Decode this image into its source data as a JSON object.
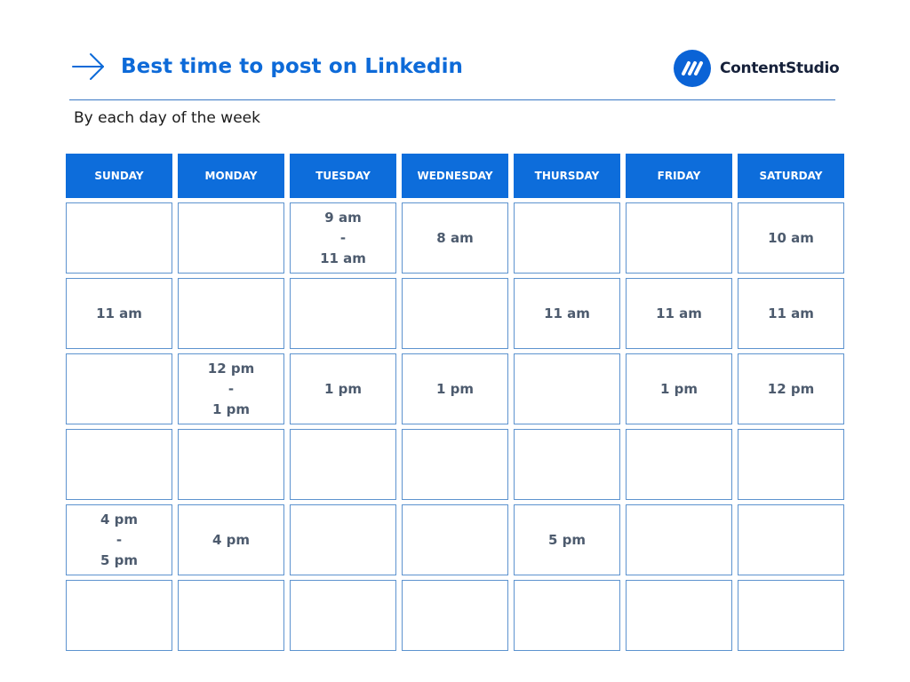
{
  "header": {
    "title": "Best time to post on Linkedin",
    "brand_name": "ContentStudio",
    "subtitle": "By each day of the week"
  },
  "icons": {
    "arrow": "arrow-right-icon",
    "logo": "contentstudio-logo-icon"
  },
  "colors": {
    "accent": "#0d6ad8",
    "header_fill": "#0d6ddb",
    "cell_border": "#5d93cf",
    "cell_text": "#4d5b6e"
  },
  "schedule": {
    "days": [
      "SUNDAY",
      "MONDAY",
      "TUESDAY",
      "WEDNESDAY",
      "THURSDAY",
      "FRIDAY",
      "SATURDAY"
    ],
    "rows": [
      [
        "",
        "",
        "9 am\n-\n11 am",
        "8 am",
        "",
        "",
        "10 am"
      ],
      [
        "11 am",
        "",
        "",
        "",
        "11 am",
        "11 am",
        "11 am"
      ],
      [
        "",
        "12 pm\n-\n1 pm",
        "1 pm",
        "1 pm",
        "",
        "1 pm",
        "12 pm"
      ],
      [
        "",
        "",
        "",
        "",
        "",
        "",
        ""
      ],
      [
        "4 pm\n-\n5 pm",
        "4 pm",
        "",
        "",
        "5 pm",
        "",
        ""
      ],
      [
        "",
        "",
        "",
        "",
        "",
        "",
        ""
      ]
    ]
  }
}
